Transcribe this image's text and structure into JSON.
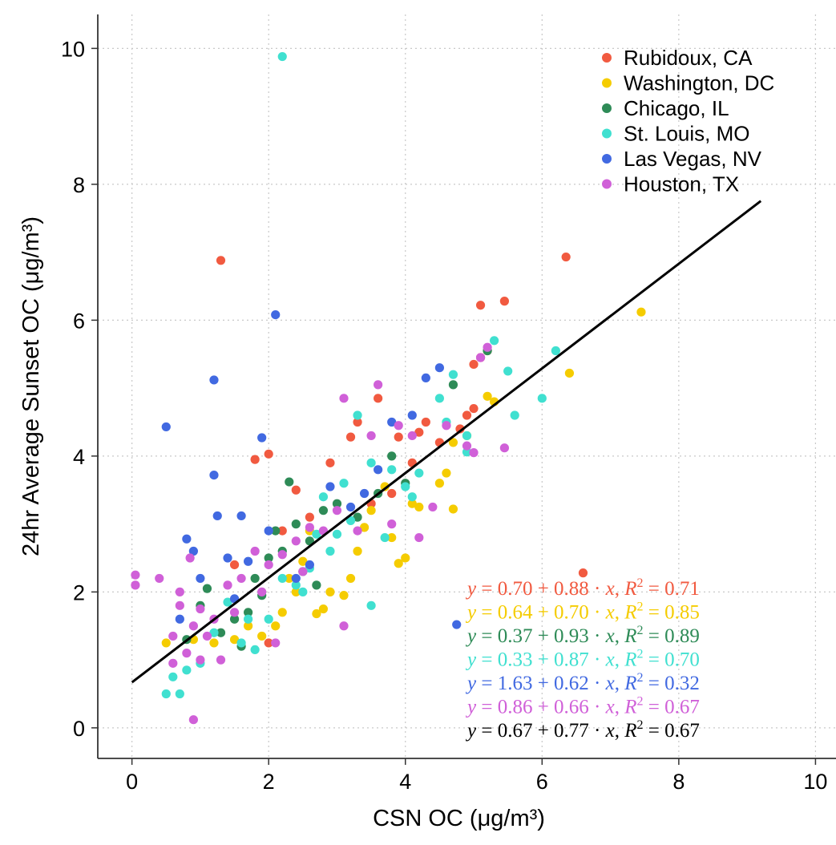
{
  "chart_data": {
    "type": "scatter",
    "title": "",
    "xlabel": "CSN OC (μg/m³)",
    "ylabel": "24hr Average Sunset OC (μg/m³)",
    "xlim": [
      -0.5,
      10.3
    ],
    "ylim": [
      -0.45,
      10.5
    ],
    "x_ticks": [
      "0",
      "2",
      "4",
      "6",
      "8",
      "10"
    ],
    "y_ticks": [
      "0",
      "2",
      "4",
      "6",
      "8",
      "10"
    ],
    "grid": "dotted",
    "legend_position": "top-right",
    "series": [
      {
        "name": "Rubidoux, CA",
        "color": "#F15A40",
        "points": [
          [
            1.3,
            6.88
          ],
          [
            1.8,
            3.95
          ],
          [
            2.0,
            4.03
          ],
          [
            3.2,
            4.28
          ],
          [
            3.6,
            4.85
          ],
          [
            3.9,
            4.28
          ],
          [
            4.2,
            4.35
          ],
          [
            4.3,
            4.5
          ],
          [
            4.8,
            4.4
          ],
          [
            5.0,
            5.35
          ],
          [
            5.1,
            6.22
          ],
          [
            5.2,
            5.55
          ],
          [
            5.45,
            6.28
          ],
          [
            6.35,
            6.93
          ],
          [
            6.6,
            2.28
          ],
          [
            2.9,
            3.9
          ],
          [
            3.3,
            4.5
          ],
          [
            2.6,
            3.1
          ],
          [
            2.4,
            3.5
          ],
          [
            4.9,
            4.6
          ],
          [
            5.0,
            4.7
          ],
          [
            4.1,
            3.9
          ],
          [
            3.5,
            3.3
          ],
          [
            2.2,
            2.9
          ],
          [
            1.5,
            2.4
          ],
          [
            4.5,
            4.2
          ],
          [
            5.1,
            5.45
          ],
          [
            3.8,
            3.45
          ],
          [
            2.0,
            1.25
          ]
        ]
      },
      {
        "name": "Washington, DC",
        "color": "#F5CC00",
        "points": [
          [
            7.45,
            6.12
          ],
          [
            6.4,
            5.22
          ],
          [
            5.2,
            4.88
          ],
          [
            4.7,
            4.2
          ],
          [
            4.6,
            3.75
          ],
          [
            4.7,
            3.22
          ],
          [
            4.1,
            3.3
          ],
          [
            4.0,
            2.5
          ],
          [
            3.9,
            2.42
          ],
          [
            3.7,
            3.55
          ],
          [
            3.5,
            3.2
          ],
          [
            3.4,
            2.95
          ],
          [
            3.3,
            2.6
          ],
          [
            3.2,
            2.2
          ],
          [
            3.1,
            1.95
          ],
          [
            2.9,
            2.0
          ],
          [
            2.8,
            1.75
          ],
          [
            2.7,
            1.68
          ],
          [
            2.6,
            2.9
          ],
          [
            2.5,
            2.45
          ],
          [
            2.3,
            2.2
          ],
          [
            2.2,
            1.7
          ],
          [
            2.1,
            1.5
          ],
          [
            1.9,
            1.35
          ],
          [
            1.7,
            1.5
          ],
          [
            1.5,
            1.3
          ],
          [
            1.2,
            1.25
          ],
          [
            0.9,
            1.3
          ],
          [
            0.5,
            1.25
          ],
          [
            4.2,
            3.25
          ],
          [
            4.5,
            3.6
          ],
          [
            4.9,
            4.3
          ],
          [
            5.3,
            4.8
          ],
          [
            3.8,
            2.8
          ],
          [
            2.4,
            2.0
          ]
        ]
      },
      {
        "name": "Chicago, IL",
        "color": "#2E8B57",
        "points": [
          [
            5.2,
            5.55
          ],
          [
            4.7,
            5.05
          ],
          [
            3.8,
            4.0
          ],
          [
            3.6,
            3.45
          ],
          [
            3.0,
            3.3
          ],
          [
            2.8,
            3.2
          ],
          [
            2.6,
            2.75
          ],
          [
            2.4,
            3.0
          ],
          [
            2.3,
            3.62
          ],
          [
            2.2,
            2.6
          ],
          [
            2.0,
            2.5
          ],
          [
            1.9,
            1.95
          ],
          [
            1.7,
            1.7
          ],
          [
            1.5,
            1.6
          ],
          [
            1.3,
            1.4
          ],
          [
            1.1,
            2.05
          ],
          [
            1.0,
            1.8
          ],
          [
            0.8,
            1.3
          ],
          [
            2.1,
            2.9
          ],
          [
            2.5,
            2.3
          ],
          [
            1.6,
            1.2
          ],
          [
            3.3,
            3.1
          ],
          [
            2.7,
            2.1
          ],
          [
            4.0,
            3.6
          ],
          [
            1.8,
            2.2
          ]
        ]
      },
      {
        "name": "St. Louis, MO",
        "color": "#40E0D0",
        "points": [
          [
            2.2,
            9.88
          ],
          [
            6.2,
            5.55
          ],
          [
            6.0,
            4.85
          ],
          [
            5.6,
            4.6
          ],
          [
            5.5,
            5.25
          ],
          [
            5.3,
            5.7
          ],
          [
            4.9,
            4.06
          ],
          [
            4.6,
            4.5
          ],
          [
            4.5,
            4.85
          ],
          [
            4.2,
            3.75
          ],
          [
            4.0,
            3.55
          ],
          [
            3.8,
            3.8
          ],
          [
            3.5,
            3.9
          ],
          [
            3.3,
            4.6
          ],
          [
            3.2,
            3.05
          ],
          [
            3.0,
            2.85
          ],
          [
            2.9,
            2.6
          ],
          [
            2.7,
            2.85
          ],
          [
            2.6,
            2.35
          ],
          [
            2.4,
            2.1
          ],
          [
            2.2,
            2.2
          ],
          [
            2.0,
            1.6
          ],
          [
            1.8,
            1.15
          ],
          [
            1.6,
            1.25
          ],
          [
            1.4,
            1.85
          ],
          [
            1.2,
            1.4
          ],
          [
            1.0,
            0.95
          ],
          [
            0.8,
            0.85
          ],
          [
            0.7,
            0.5
          ],
          [
            0.5,
            0.5
          ],
          [
            0.6,
            0.75
          ],
          [
            3.5,
            1.8
          ],
          [
            3.7,
            2.8
          ],
          [
            4.1,
            3.4
          ],
          [
            4.9,
            4.3
          ],
          [
            2.5,
            2.0
          ],
          [
            1.7,
            1.6
          ],
          [
            2.8,
            3.4
          ],
          [
            3.1,
            3.6
          ],
          [
            4.7,
            5.2
          ]
        ]
      },
      {
        "name": "Las Vegas, NV",
        "color": "#4169E1",
        "points": [
          [
            0.5,
            4.43
          ],
          [
            2.1,
            6.08
          ],
          [
            1.2,
            5.12
          ],
          [
            1.9,
            4.27
          ],
          [
            1.2,
            3.72
          ],
          [
            1.6,
            3.12
          ],
          [
            1.25,
            3.12
          ],
          [
            0.8,
            2.78
          ],
          [
            0.9,
            2.6
          ],
          [
            1.4,
            2.5
          ],
          [
            1.0,
            2.2
          ],
          [
            1.7,
            2.45
          ],
          [
            2.0,
            2.9
          ],
          [
            2.9,
            3.55
          ],
          [
            3.2,
            3.25
          ],
          [
            3.4,
            3.45
          ],
          [
            3.8,
            4.5
          ],
          [
            4.3,
            5.15
          ],
          [
            4.5,
            5.3
          ],
          [
            4.1,
            4.6
          ],
          [
            4.75,
            1.52
          ],
          [
            2.6,
            2.4
          ],
          [
            2.4,
            2.2
          ],
          [
            3.6,
            3.8
          ],
          [
            1.5,
            1.9
          ],
          [
            0.7,
            1.6
          ]
        ]
      },
      {
        "name": "Houston, TX",
        "color": "#D060D8",
        "points": [
          [
            0.05,
            2.25
          ],
          [
            0.05,
            2.1
          ],
          [
            0.4,
            2.2
          ],
          [
            0.7,
            2.0
          ],
          [
            0.9,
            0.12
          ],
          [
            0.85,
            2.5
          ],
          [
            1.0,
            1.75
          ],
          [
            1.2,
            1.6
          ],
          [
            1.4,
            2.1
          ],
          [
            1.6,
            2.2
          ],
          [
            1.8,
            2.6
          ],
          [
            2.0,
            2.4
          ],
          [
            2.2,
            2.55
          ],
          [
            2.4,
            2.75
          ],
          [
            2.6,
            2.95
          ],
          [
            2.8,
            2.9
          ],
          [
            3.0,
            3.2
          ],
          [
            3.1,
            1.5
          ],
          [
            3.1,
            4.85
          ],
          [
            3.5,
            4.3
          ],
          [
            3.6,
            5.05
          ],
          [
            3.9,
            4.45
          ],
          [
            4.1,
            4.3
          ],
          [
            4.4,
            3.25
          ],
          [
            4.6,
            4.45
          ],
          [
            4.9,
            4.15
          ],
          [
            5.0,
            4.05
          ],
          [
            5.45,
            4.12
          ],
          [
            5.1,
            5.45
          ],
          [
            5.2,
            5.6
          ],
          [
            0.6,
            0.95
          ],
          [
            0.8,
            1.1
          ],
          [
            1.1,
            1.35
          ],
          [
            1.3,
            1.0
          ],
          [
            0.9,
            1.5
          ],
          [
            0.6,
            1.35
          ],
          [
            1.5,
            1.7
          ],
          [
            1.9,
            2.0
          ],
          [
            2.1,
            1.25
          ],
          [
            0.7,
            1.8
          ],
          [
            2.5,
            2.3
          ],
          [
            3.3,
            2.9
          ],
          [
            3.8,
            3.0
          ],
          [
            4.2,
            2.8
          ],
          [
            1.0,
            1.0
          ]
        ]
      }
    ],
    "fit_line": {
      "intercept": 0.67,
      "slope": 0.77,
      "color": "#000000",
      "x_range": [
        0.0,
        9.2
      ]
    },
    "equations": [
      {
        "lhs": "y",
        "body": " = 0.70 + 0.88 · ",
        "x": "x",
        "sep": ",  ",
        "r": "R",
        "r2": " = 0.71",
        "color": "#F15A40"
      },
      {
        "lhs": "y",
        "body": " = 0.64 + 0.70 · ",
        "x": "x",
        "sep": ",  ",
        "r": "R",
        "r2": " = 0.85",
        "color": "#F5CC00"
      },
      {
        "lhs": "y",
        "body": " = 0.37 + 0.93 · ",
        "x": "x",
        "sep": ",  ",
        "r": "R",
        "r2": " = 0.89",
        "color": "#2E8B57"
      },
      {
        "lhs": "y",
        "body": " = 0.33 + 0.87 · ",
        "x": "x",
        "sep": ",  ",
        "r": "R",
        "r2": " = 0.70",
        "color": "#40E0D0"
      },
      {
        "lhs": "y",
        "body": " = 1.63 + 0.62 · ",
        "x": "x",
        "sep": ",  ",
        "r": "R",
        "r2": " = 0.32",
        "color": "#4169E1"
      },
      {
        "lhs": "y",
        "body": " = 0.86 + 0.66 · ",
        "x": "x",
        "sep": ",  ",
        "r": "R",
        "r2": " = 0.67",
        "color": "#D060D8"
      },
      {
        "lhs": "y",
        "body": " = 0.67 + 0.77 · ",
        "x": "x",
        "sep": ",  ",
        "r": "R",
        "r2": " = 0.67",
        "color": "#000000"
      }
    ]
  }
}
